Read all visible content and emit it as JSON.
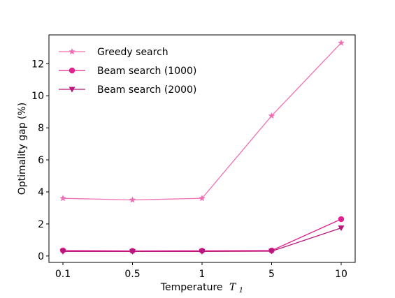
{
  "chart_data": {
    "type": "line",
    "categories": [
      "0.1",
      "0.5",
      "1",
      "5",
      "10"
    ],
    "xlabel": "Temperature",
    "xlabel_symbol": "T",
    "xlabel_subscript": "1",
    "ylabel": "Optimality gap (%)",
    "ylim": [
      -0.4,
      13.8
    ],
    "yticks": [
      0,
      2,
      4,
      6,
      8,
      10,
      12
    ],
    "grid": false,
    "legend_position": "top-left",
    "series": [
      {
        "name": "Greedy search",
        "marker": "star",
        "color": "#f06fb4",
        "values": [
          3.6,
          3.5,
          3.6,
          8.75,
          13.3
        ]
      },
      {
        "name": "Beam search (1000)",
        "marker": "circle",
        "color": "#e3218f",
        "values": [
          0.35,
          0.32,
          0.33,
          0.34,
          2.3
        ]
      },
      {
        "name": "Beam search (2000)",
        "marker": "triangle-down",
        "color": "#b5177a",
        "values": [
          0.28,
          0.28,
          0.28,
          0.3,
          1.75
        ]
      }
    ]
  }
}
